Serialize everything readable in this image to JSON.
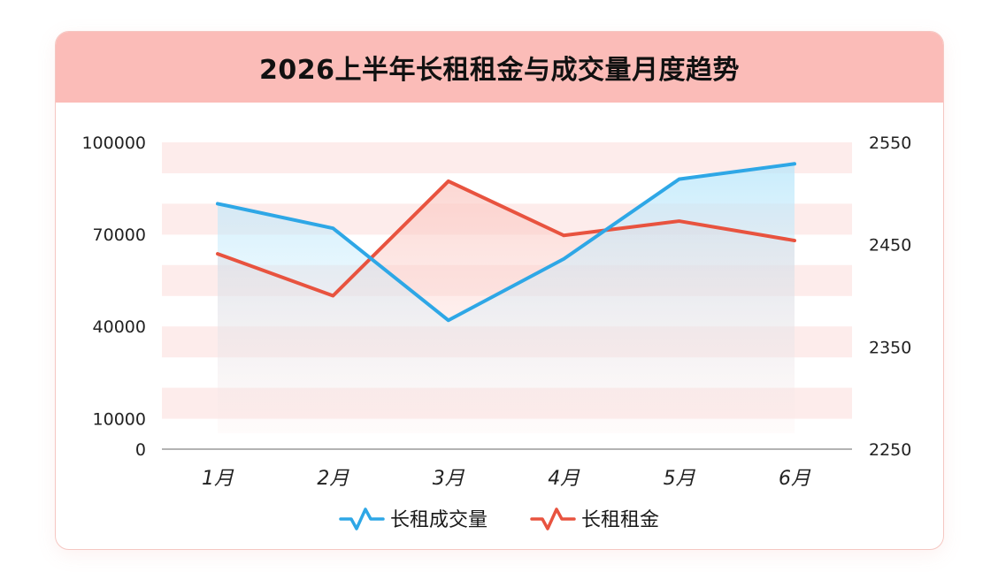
{
  "chart_data": {
    "type": "line",
    "title": "2026上半年长租租金与成交量月度趋势",
    "categories": [
      "1月",
      "2月",
      "3月",
      "4月",
      "5月",
      "6月"
    ],
    "series": [
      {
        "name": "长租成交量",
        "axis": "left",
        "color": "#2ea7e6",
        "values": [
          80000,
          72000,
          42000,
          62000,
          88000,
          93000
        ]
      },
      {
        "name": "长租租金",
        "axis": "right",
        "color": "#e8533f",
        "values": [
          2441,
          2400,
          2512,
          2459,
          2473,
          2454
        ]
      }
    ],
    "y_left": {
      "ylim": [
        0,
        100000
      ],
      "ticks": [
        0,
        10000,
        40000,
        70000,
        100000
      ],
      "tick_labels": [
        "0",
        "10000",
        "40000",
        "70000",
        "100000"
      ]
    },
    "y_right": {
      "ylim": [
        2250,
        2550
      ],
      "ticks": [
        2250,
        2350,
        2450,
        2550
      ],
      "tick_labels": [
        "2250",
        "2350",
        "2450",
        "2550"
      ]
    },
    "band_color": "#fdeceb"
  }
}
